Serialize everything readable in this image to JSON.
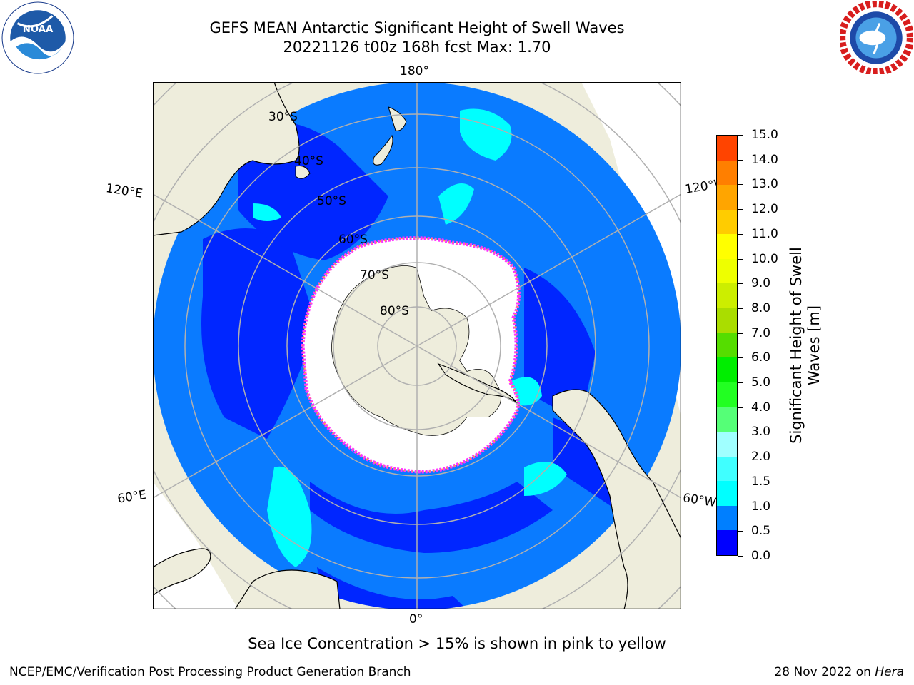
{
  "title": {
    "line1": "GEFS MEAN Antarctic Significant Height of Swell Waves",
    "line2": "20221126 t00z 168h fcst   Max: 1.70"
  },
  "logos": {
    "left": {
      "name": "NOAA",
      "ring_text": "NATIONAL OCEANIC AND ATMOSPHERIC ADMINISTRATION · U.S. DEPARTMENT OF COMMERCE"
    },
    "right": {
      "name": "NATIONAL WEATHER SERVICE"
    }
  },
  "map": {
    "projection": "south-polar-stereographic",
    "longitude_labels": {
      "top": "180°",
      "bottom": "0°",
      "upper_left": "120°E",
      "upper_right": "120°W",
      "lower_left": "60°E",
      "lower_right": "60°W"
    },
    "latitude_labels": [
      "30°S",
      "40°S",
      "50°S",
      "60°S",
      "70°S",
      "80°S"
    ],
    "colors": {
      "land": "#eeeddc",
      "ocean_low": "#0026ff",
      "ocean_mid": "#0a7bff",
      "ocean_high": "#00ffff",
      "ice": "#ffffff",
      "ice_edge": [
        "#ff33ff",
        "#ffa040",
        "#ffee55"
      ],
      "grid": "#b0b0b0"
    }
  },
  "colorbar": {
    "label": "Significant Height of Swell Waves [m]",
    "ticks": [
      "0.0",
      "0.5",
      "1.0",
      "1.5",
      "2.0",
      "3.0",
      "4.0",
      "5.0",
      "6.0",
      "7.0",
      "8.0",
      "9.0",
      "10.0",
      "11.0",
      "12.0",
      "13.0",
      "14.0",
      "15.0"
    ],
    "colors": [
      "#0000ff",
      "#007fff",
      "#00ffff",
      "#40ffff",
      "#a0ffff",
      "#55ff77",
      "#22ff22",
      "#00ee00",
      "#55dd00",
      "#aadd00",
      "#ccee00",
      "#eeff00",
      "#ffff00",
      "#ffcc00",
      "#ffa500",
      "#ff7f00",
      "#ff4400",
      "#ff0000",
      "#ff0000"
    ]
  },
  "note": "Sea Ice Concentration > 15% is shown in pink to yellow",
  "footer": {
    "left": "NCEP/EMC/Verification Post Processing Product Generation Branch",
    "right_date": "28 Nov 2022 on ",
    "right_machine": "Hera"
  }
}
